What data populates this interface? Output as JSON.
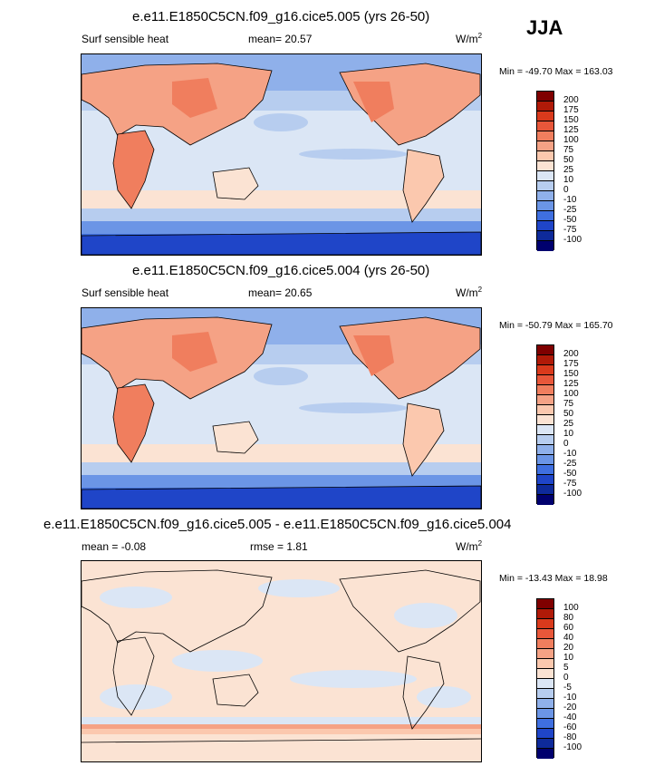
{
  "season": "JJA",
  "panels": [
    {
      "title": "e.e11.E1850C5CN.f09_g16.cice5.005 (yrs 26-50)",
      "left_label": "Surf sensible heat",
      "center_label": "mean=  20.57",
      "unit_base": "W/m",
      "unit_exp": "2",
      "minmax": "Min = -49.70 Max = 163.03",
      "colorbar_labels": [
        "200",
        "175",
        "150",
        "125",
        "100",
        "75",
        "50",
        "25",
        "10",
        "0",
        "-10",
        "-25",
        "-50",
        "-75",
        "-100"
      ]
    },
    {
      "title": "e.e11.E1850C5CN.f09_g16.cice5.004 (yrs 26-50)",
      "left_label": "Surf sensible heat",
      "center_label": "mean=  20.65",
      "unit_base": "W/m",
      "unit_exp": "2",
      "minmax": "Min = -50.79 Max = 165.70",
      "colorbar_labels": [
        "200",
        "175",
        "150",
        "125",
        "100",
        "75",
        "50",
        "25",
        "10",
        "0",
        "-10",
        "-25",
        "-50",
        "-75",
        "-100"
      ]
    },
    {
      "title": "e.e11.E1850C5CN.f09_g16.cice5.005 - e.e11.E1850C5CN.f09_g16.cice5.004",
      "left_label": "mean =  -0.08",
      "center_label": "rmse =  1.81",
      "unit_base": "W/m",
      "unit_exp": "2",
      "minmax": "Min = -13.43 Max =  18.98",
      "colorbar_labels": [
        "100",
        "80",
        "60",
        "40",
        "20",
        "10",
        "5",
        "0",
        "-5",
        "-10",
        "-20",
        "-40",
        "-60",
        "-80",
        "-100"
      ]
    }
  ],
  "colors": {
    "scale": [
      "#7f0000",
      "#b01a08",
      "#d93a1c",
      "#e8573a",
      "#f07e5e",
      "#f5a285",
      "#fbc8ae",
      "#fbe3d3",
      "#dbe6f5",
      "#b7cdef",
      "#8fb0ea",
      "#6b95e6",
      "#3f6fe0",
      "#1f45c8",
      "#0e2a9a",
      "#00006e"
    ]
  }
}
